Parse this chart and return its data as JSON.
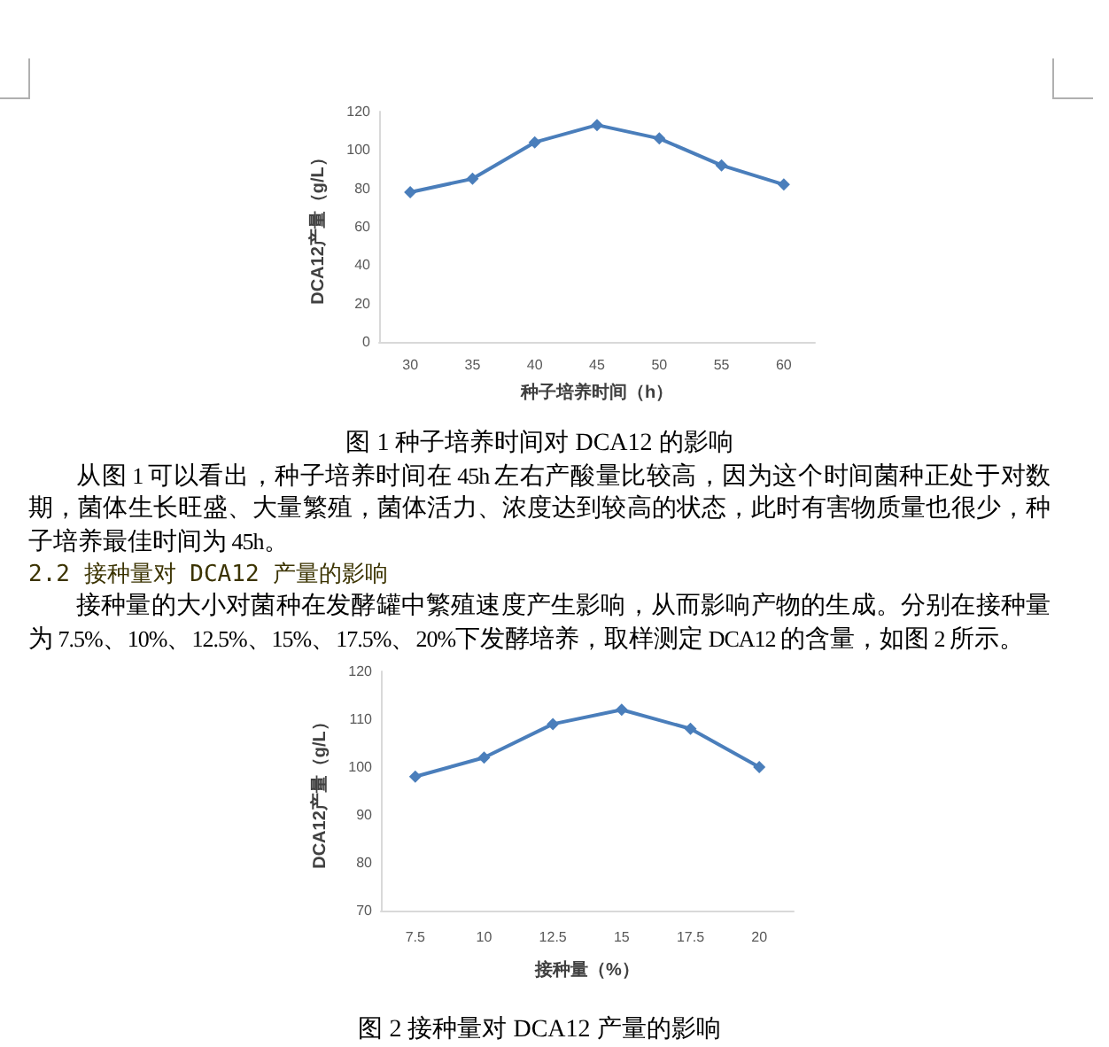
{
  "chart_data": [
    {
      "type": "line",
      "categories": [
        "30",
        "35",
        "40",
        "45",
        "50",
        "55",
        "60"
      ],
      "series": [
        {
          "color": "#4a7ebb",
          "values": [
            78,
            85,
            104,
            113,
            106,
            92,
            82
          ]
        }
      ],
      "xlabel": "种子培养时间（h）",
      "ylabel": "DCA12产量（g/L）",
      "ylim": [
        0,
        120
      ],
      "yticks": [
        0,
        20,
        40,
        60,
        80,
        100,
        120
      ],
      "marker": "diamond",
      "line_style": "solid",
      "annotations": [
        "图 1 种子培养时间对 DCA12 的影响",
        "从图 1 可以看出，种子培养时间在 45h 左右产酸量比较高，因为这个时间菌种正处于对数期，菌体生长旺盛、大量繁殖，菌体活力、浓度达到较高的状态，此时有害物质量也很少，种子培养最佳时间为 45h。",
        "2.2 接种量对 DCA12 产量的影响",
        "接种量的大小对菌种在发酵罐中繁殖速度产生影响，从而影响产物的生成。分别在接种量为 7.5%、10%、12.5%、15%、17.5%、20%下发酵培养，取样测定 DCA12 的含量，如图 2 所示。"
      ]
    },
    {
      "type": "line",
      "categories": [
        "7.5",
        "10",
        "12.5",
        "15",
        "17.5",
        "20"
      ],
      "series": [
        {
          "color": "#4a7ebb",
          "values": [
            98,
            102,
            109,
            112,
            108,
            100
          ]
        }
      ],
      "xlabel": "接种量（%）",
      "ylabel": "DCA12产量（g/L）",
      "ylim": [
        70,
        120
      ],
      "yticks": [
        70,
        80,
        90,
        100,
        110,
        120
      ],
      "marker": "diamond",
      "line_style": "solid",
      "annotations": [
        "图 2 接种量对 DCA12 产量的影响"
      ]
    }
  ]
}
